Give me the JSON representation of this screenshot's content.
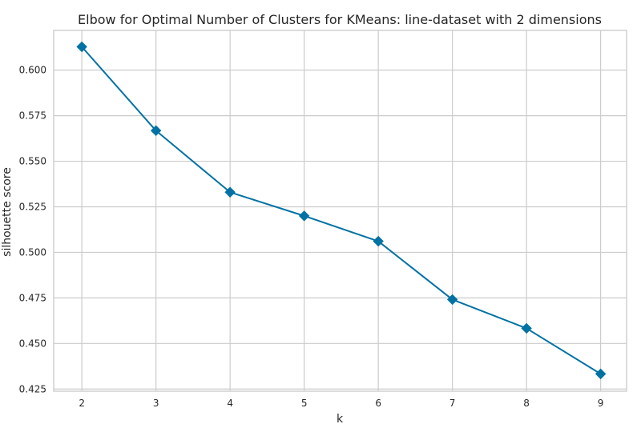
{
  "chart_data": {
    "type": "line",
    "title": "Elbow for Optimal Number of Clusters for KMeans: line-dataset with 2 dimensions",
    "xlabel": "k",
    "ylabel": "silhouette score",
    "x": [
      2,
      3,
      4,
      5,
      6,
      7,
      8,
      9
    ],
    "x_ticks": [
      "2",
      "3",
      "4",
      "5",
      "6",
      "7",
      "8",
      "9"
    ],
    "y_ticks": [
      "0.425",
      "0.450",
      "0.475",
      "0.500",
      "0.525",
      "0.550",
      "0.575",
      "0.600"
    ],
    "xlim": [
      1.62,
      9.35
    ],
    "ylim": [
      0.4238,
      0.6218
    ],
    "grid": true,
    "series": [
      {
        "values": [
          0.6128,
          0.5668,
          0.533,
          0.52,
          0.5061,
          0.4741,
          0.4583,
          0.4333
        ],
        "color": "#0072a3",
        "marker": "diamond"
      }
    ]
  }
}
